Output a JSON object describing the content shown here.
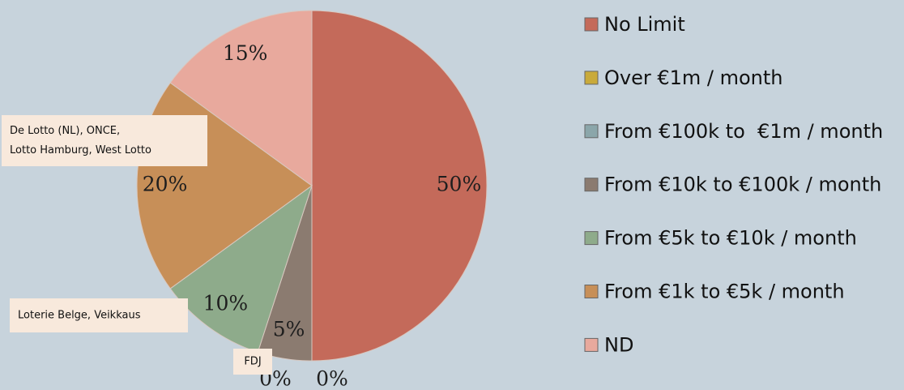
{
  "chart_data": {
    "type": "pie",
    "categories": [
      "No Limit",
      "Over €1m / month",
      "From €100k to  €1m / month",
      "From €10k to €100k / month",
      "From €5k to €10k / month",
      "From €1k to €5k / month",
      "ND"
    ],
    "values": [
      50,
      0,
      0,
      5,
      10,
      20,
      15
    ],
    "value_labels": [
      "50%",
      "0%",
      "0%",
      "5%",
      "10%",
      "20%",
      "15%"
    ],
    "colors": [
      "#c46a5a",
      "#c9aa3a",
      "#8ba6aa",
      "#8b7b70",
      "#8eab8b",
      "#c78f58",
      "#e8a99d"
    ],
    "annotations": [
      {
        "lines": [
          "De Lotto (NL), ONCE,",
          "Lotto Hamburg, West Lotto"
        ]
      },
      {
        "lines": [
          "Loterie Belge, Veikkaus"
        ]
      },
      {
        "lines": [
          "FDJ"
        ]
      }
    ],
    "legend": "right"
  }
}
